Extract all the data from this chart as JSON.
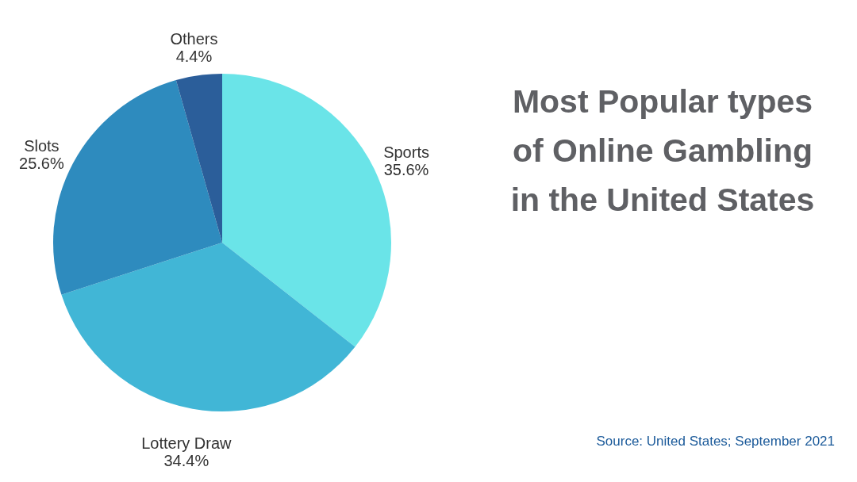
{
  "chart_data": {
    "type": "pie",
    "title": "Most Popular types\nof Online Gambling\nin the United States",
    "categories": [
      "Sports",
      "Lottery Draw",
      "Slots",
      "Others"
    ],
    "values": [
      35.6,
      34.4,
      25.6,
      4.4
    ],
    "colors": [
      "#6ae4e8",
      "#41b6d6",
      "#2e8bbe",
      "#2b5e9a"
    ],
    "value_labels": [
      "35.6%",
      "34.4%",
      "25.6%",
      "4.4%"
    ],
    "annotations": [
      "Source: United States; September 2021"
    ]
  }
}
